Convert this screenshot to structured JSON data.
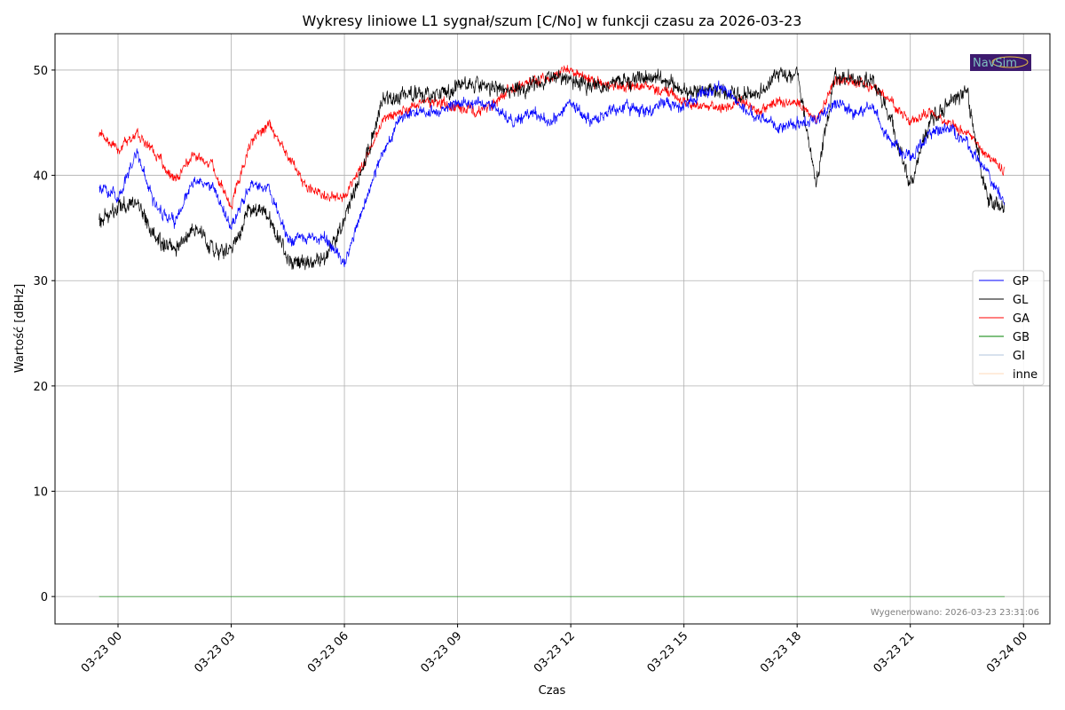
{
  "chart_data": {
    "type": "line",
    "title": "Wykresy liniowe L1 sygnał/szum [C/No] w funkcji czasu za 2026-03-23",
    "xlabel": "Czas",
    "ylabel": "Wartość [dBHz]",
    "x_unit": "hours since 2026-03-23 00:00",
    "xlim": [
      -1.67,
      24.7
    ],
    "ylim": [
      -2.6,
      53.45
    ],
    "grid": true,
    "legend_position": "center-right",
    "x_ticks": [
      {
        "value": 0,
        "label": "03-23 00"
      },
      {
        "value": 3,
        "label": "03-23 03"
      },
      {
        "value": 6,
        "label": "03-23 06"
      },
      {
        "value": 9,
        "label": "03-23 09"
      },
      {
        "value": 12,
        "label": "03-23 12"
      },
      {
        "value": 15,
        "label": "03-23 15"
      },
      {
        "value": 18,
        "label": "03-23 18"
      },
      {
        "value": 21,
        "label": "03-23 21"
      },
      {
        "value": 24,
        "label": "03-24 00"
      }
    ],
    "y_ticks": [
      {
        "value": 0,
        "label": "0"
      },
      {
        "value": 10,
        "label": "10"
      },
      {
        "value": 20,
        "label": "20"
      },
      {
        "value": 30,
        "label": "30"
      },
      {
        "value": 40,
        "label": "40"
      },
      {
        "value": 50,
        "label": "50"
      }
    ],
    "x": [
      -0.5,
      0,
      0.5,
      1,
      1.5,
      2,
      2.5,
      3,
      3.5,
      4,
      4.5,
      5,
      5.5,
      6,
      6.5,
      7,
      7.5,
      8,
      8.5,
      9,
      9.5,
      10,
      10.5,
      11,
      11.5,
      12,
      12.5,
      13,
      13.5,
      14,
      14.5,
      15,
      15.5,
      16,
      16.5,
      17,
      17.5,
      18,
      18.5,
      19,
      19.5,
      20,
      20.5,
      21,
      21.5,
      22,
      22.5,
      23,
      23.5
    ],
    "series": [
      {
        "name": "GP",
        "color": "#0000ff",
        "values": [
          39,
          38,
          42,
          37,
          35.5,
          39.5,
          39,
          35,
          39,
          39,
          34,
          34,
          34,
          31.5,
          37,
          42,
          45.5,
          46,
          46,
          47,
          47,
          46.5,
          45,
          46,
          45,
          47,
          45,
          46,
          46.5,
          46,
          47,
          46.5,
          48,
          48.5,
          46.5,
          45.5,
          44.5,
          45,
          45,
          47,
          46,
          46.5,
          43,
          41.5,
          44,
          44.5,
          43,
          40.5,
          37.5
        ]
      },
      {
        "name": "GL",
        "color": "#000000",
        "values": [
          35.5,
          37,
          37.5,
          34,
          33,
          35,
          33,
          33,
          37,
          36,
          32,
          31.5,
          32,
          36,
          40.5,
          47,
          47.5,
          48,
          47.5,
          48.5,
          48.5,
          48.5,
          48,
          48.5,
          49.5,
          49,
          48.5,
          48.5,
          49,
          49.5,
          49,
          48,
          48,
          48,
          47.5,
          48,
          49.5,
          49.5,
          39,
          49.5,
          49,
          49,
          45,
          39,
          45,
          47,
          48,
          38,
          37
        ]
      },
      {
        "name": "GA",
        "color": "#ff0000",
        "values": [
          44,
          42.5,
          44,
          42,
          39.5,
          42,
          41,
          37,
          43,
          45,
          42,
          39,
          38,
          38,
          41,
          45,
          46,
          47,
          47,
          46.5,
          46,
          47,
          48.5,
          49,
          49.5,
          50,
          49,
          48.5,
          48.5,
          48.5,
          48,
          47,
          46.5,
          46.5,
          47,
          46,
          47,
          47,
          45,
          49,
          49,
          48.5,
          47,
          45,
          46,
          45,
          44,
          42,
          40.5
        ]
      },
      {
        "name": "GB",
        "color": "#008000",
        "values": [
          0,
          0,
          0,
          0,
          0,
          0,
          0,
          0,
          0,
          0,
          0,
          0,
          0,
          0,
          0,
          0,
          0,
          0,
          0,
          0,
          0,
          0,
          0,
          0,
          0,
          0,
          0,
          0,
          0,
          0,
          0,
          0,
          0,
          0,
          0,
          0,
          0,
          0,
          0,
          0,
          0,
          0,
          0,
          0,
          0,
          0,
          0,
          0,
          0
        ]
      },
      {
        "name": "GI",
        "color": "#b0c4de",
        "values": [
          0,
          0,
          0,
          0,
          0,
          0,
          0,
          0,
          0,
          0,
          0,
          0,
          0,
          0,
          0,
          0,
          0,
          0,
          0,
          0,
          0,
          0,
          0,
          0,
          0,
          0,
          0,
          0,
          0,
          0,
          0,
          0,
          0,
          0,
          0,
          0,
          0,
          0,
          0,
          0,
          0,
          0,
          0,
          0,
          0,
          0,
          0,
          0,
          0
        ]
      },
      {
        "name": "inne",
        "color": "#ffdab9",
        "values": [
          0,
          0,
          0,
          0,
          0,
          0,
          0,
          0,
          0,
          0,
          0,
          0,
          0,
          0,
          0,
          0,
          0,
          0,
          0,
          0,
          0,
          0,
          0,
          0,
          0,
          0,
          0,
          0,
          0,
          0,
          0,
          0,
          0,
          0,
          0,
          0,
          0,
          0,
          0,
          0,
          0,
          0,
          0,
          0,
          0,
          0,
          0,
          0,
          0
        ]
      }
    ],
    "annotations": {
      "generated": "Wygenerowano: 2026-03-23 23:31:06",
      "logo": "NavSim"
    }
  }
}
